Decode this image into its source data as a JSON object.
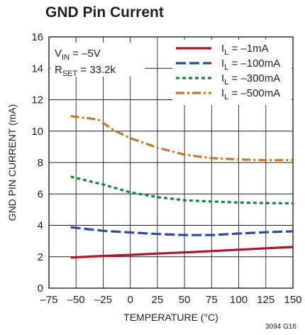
{
  "title": "GND Pin Current",
  "figure_id": "3094 G16",
  "conditions": [
    {
      "name": "V",
      "sub": "IN",
      "rest": " = –5V"
    },
    {
      "name": "R",
      "sub": "SET",
      "rest": " = 33.2k"
    }
  ],
  "colors": {
    "grid": "#231f20",
    "series_1mA": "#a6192e",
    "series_100mA": "#2b4a9c",
    "series_300mA": "#12883e",
    "series_500mA": "#c8782a"
  },
  "chart_data": {
    "type": "line",
    "xlabel": "TEMPERATURE (°C)",
    "ylabel": "GND PIN CURRENT (mA)",
    "xlim": [
      -75,
      150
    ],
    "ylim": [
      0,
      16
    ],
    "xticks": [
      -75,
      -50,
      -25,
      0,
      25,
      50,
      75,
      100,
      125,
      150
    ],
    "yticks": [
      0,
      2,
      4,
      6,
      8,
      10,
      12,
      14,
      16
    ],
    "xtick_labels": [
      "–75",
      "–50",
      "–25",
      "0",
      "25",
      "50",
      "75",
      "100",
      "125",
      "150"
    ],
    "ytick_labels": [
      "0",
      "2",
      "4",
      "6",
      "8",
      "10",
      "12",
      "14",
      "16"
    ],
    "grid": true,
    "legend_position": "top-right",
    "series": [
      {
        "name": "I",
        "name_sub": "L",
        "name_rest": " = –1mA",
        "style": "solid",
        "x": [
          -55,
          -25,
          0,
          25,
          50,
          75,
          100,
          125,
          150
        ],
        "y": [
          1.95,
          2.05,
          2.12,
          2.2,
          2.28,
          2.36,
          2.45,
          2.54,
          2.62
        ]
      },
      {
        "name": "I",
        "name_sub": "L",
        "name_rest": " = –100mA",
        "style": "dashed",
        "x": [
          -55,
          -25,
          0,
          25,
          50,
          75,
          100,
          125,
          150
        ],
        "y": [
          3.88,
          3.65,
          3.55,
          3.45,
          3.38,
          3.38,
          3.48,
          3.56,
          3.62
        ]
      },
      {
        "name": "I",
        "name_sub": "L",
        "name_rest": " = –300mA",
        "style": "dotted",
        "x": [
          -55,
          -25,
          0,
          25,
          50,
          75,
          100,
          125,
          150
        ],
        "y": [
          7.1,
          6.6,
          6.1,
          5.8,
          5.6,
          5.52,
          5.45,
          5.42,
          5.4
        ]
      },
      {
        "name": "I",
        "name_sub": "L",
        "name_rest": " = –500mA",
        "style": "dashdot",
        "x": [
          -55,
          -30,
          -15,
          0,
          25,
          50,
          75,
          100,
          125,
          150
        ],
        "y": [
          10.95,
          10.75,
          10.05,
          9.55,
          8.95,
          8.5,
          8.28,
          8.2,
          8.15,
          8.15
        ]
      }
    ]
  }
}
